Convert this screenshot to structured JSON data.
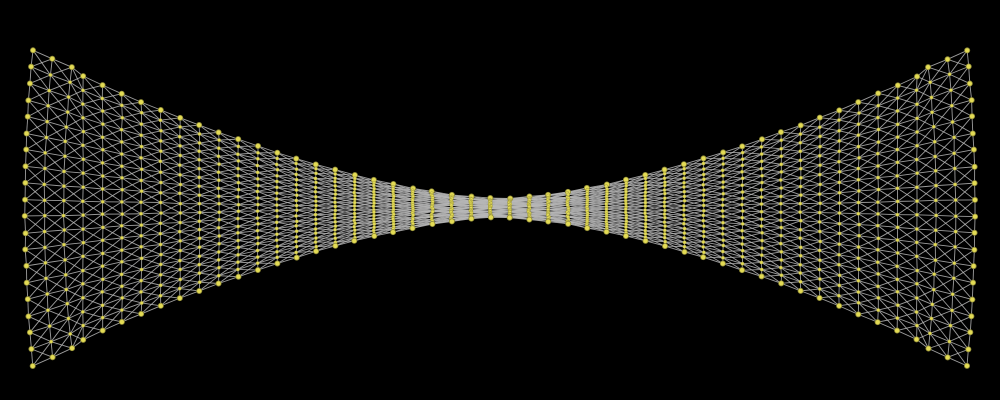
{
  "graph": {
    "type": "mesh-graph",
    "shape": "bowtie",
    "background_color": "#000000",
    "edge_color": "#b9b9b9",
    "node_fill_color": "#e3db55",
    "node_stroke_color": "#8f8a36",
    "grid_columns": 50,
    "grid_rows": 20
  }
}
